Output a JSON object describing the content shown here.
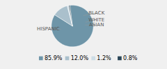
{
  "chart_data": {
    "type": "pie",
    "categories": [
      "HISPANIC",
      "BLACK",
      "WHITE",
      "ASIAN"
    ],
    "values": [
      85.9,
      12.0,
      1.2,
      0.8
    ],
    "value_labels": [
      "85.9%",
      "12.0%",
      "1.2%",
      "0.8%"
    ],
    "colors": [
      "#6e95a8",
      "#aac0cc",
      "#cddde6",
      "#2a4658"
    ],
    "legend": "bottom"
  }
}
